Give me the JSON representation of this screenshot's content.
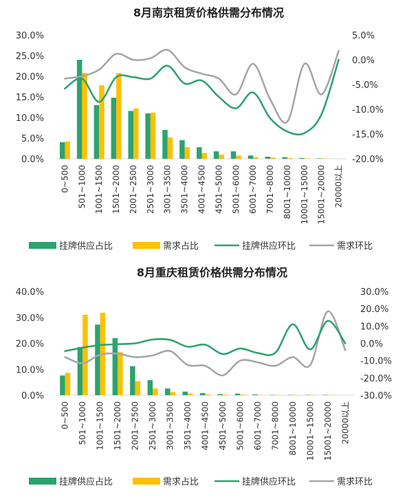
{
  "chart_data": [
    {
      "type": "bar",
      "title": "8月南京租赁价格供需分布情况",
      "categories": [
        "0~500",
        "501~1000",
        "1001~1500",
        "1501~2000",
        "2001~2500",
        "2501~3000",
        "3001~3500",
        "3501~4000",
        "4001~4500",
        "4501~5000",
        "5001~6000",
        "6001~7000",
        "7001~8000",
        "8001~10000",
        "10001~15000",
        "15001~20000",
        "20000以上"
      ],
      "left_axis": {
        "min": 0,
        "max": 30,
        "step": 5,
        "ticks": [
          "0.0%",
          "5.0%",
          "10.0%",
          "15.0%",
          "20.0%",
          "25.0%",
          "30.0%"
        ]
      },
      "right_axis": {
        "min": -20,
        "max": 5,
        "step": 5,
        "ticks": [
          "-20.0%",
          "-15.0%",
          "-10.0%",
          "-5.0%",
          "0.0%",
          "5.0%"
        ]
      },
      "series": [
        {
          "name": "挂牌供应占比",
          "kind": "bar",
          "axis": "left",
          "color": "#2ca36e",
          "values": [
            4.0,
            24.0,
            13.0,
            14.8,
            11.6,
            11.0,
            7.0,
            4.5,
            2.8,
            1.8,
            1.8,
            0.8,
            0.5,
            0.4,
            0.2,
            0.1,
            null
          ]
        },
        {
          "name": "需求占比",
          "kind": "bar",
          "axis": "left",
          "color": "#ffc000",
          "values": [
            4.2,
            20.8,
            17.8,
            20.8,
            12.2,
            11.2,
            5.2,
            2.8,
            1.4,
            1.0,
            0.8,
            0.4,
            0.3,
            0.2,
            0.1,
            0.1,
            null
          ]
        },
        {
          "name": "挂牌供应环比",
          "kind": "line",
          "axis": "right",
          "color": "#2ca36e",
          "values": [
            -5.8,
            -3.8,
            -8.5,
            -3.5,
            -3.5,
            -3.8,
            -1.2,
            -4.8,
            -4.2,
            -7.5,
            -9.8,
            -6.6,
            -11.8,
            -14.5,
            -14.8,
            -11.0,
            0.0
          ]
        },
        {
          "name": "需求环比",
          "kind": "line",
          "axis": "right",
          "color": "#a6a6a6",
          "values": [
            -3.8,
            -3.3,
            -2.0,
            1.2,
            0.0,
            0.3,
            2.0,
            -1.5,
            -2.8,
            -3.8,
            -7.0,
            -0.8,
            -8.0,
            -12.5,
            -0.8,
            -7.0,
            1.8
          ]
        }
      ]
    },
    {
      "type": "bar",
      "title": "8月重庆租赁价格供需分布情况",
      "categories": [
        "0~500",
        "501~1000",
        "1001~1500",
        "1501~2000",
        "2001~2500",
        "2501~3000",
        "3001~3500",
        "3501~4000",
        "4001~4500",
        "4501~5000",
        "5001~6000",
        "6001~7000",
        "7001~8000",
        "8001~10000",
        "10001~15000",
        "15001~20000",
        "20000以上"
      ],
      "left_axis": {
        "min": 0,
        "max": 40,
        "step": 10,
        "ticks": [
          "0.0%",
          "10.0%",
          "20.0%",
          "30.0%",
          "40.0%"
        ]
      },
      "right_axis": {
        "min": -30,
        "max": 30,
        "step": 10,
        "ticks": [
          "-30.0%",
          "-20.0%",
          "-10.0%",
          "0.0%",
          "10.0%",
          "20.0%",
          "30.0%"
        ]
      },
      "series": [
        {
          "name": "挂牌供应占比",
          "kind": "bar",
          "axis": "left",
          "color": "#2ca36e",
          "values": [
            7.6,
            18.6,
            27.2,
            22.0,
            11.2,
            5.8,
            2.6,
            1.4,
            0.8,
            0.4,
            0.6,
            0.3,
            0.1,
            0.1,
            0.1,
            0.1,
            null
          ]
        },
        {
          "name": "需求占比",
          "kind": "bar",
          "axis": "left",
          "color": "#ffc000",
          "values": [
            8.6,
            31.0,
            31.8,
            16.6,
            5.4,
            2.6,
            1.2,
            0.6,
            0.3,
            0.2,
            0.2,
            0.1,
            0.1,
            0.1,
            0.1,
            0.1,
            null
          ]
        },
        {
          "name": "挂牌供应环比",
          "kind": "line",
          "axis": "right",
          "color": "#2ca36e",
          "values": [
            -4.5,
            -2.5,
            -1.0,
            -0.5,
            0.0,
            2.2,
            2.0,
            -2.0,
            -0.8,
            -6.2,
            -3.0,
            -5.6,
            -5.5,
            11.0,
            -3.5,
            13.0,
            0.0
          ]
        },
        {
          "name": "需求环比",
          "kind": "line",
          "axis": "right",
          "color": "#a6a6a6",
          "values": [
            -8.0,
            -11.5,
            -6.5,
            -6.0,
            -8.0,
            -7.0,
            -4.5,
            -12.5,
            -13.0,
            -18.5,
            -10.0,
            -11.0,
            -13.0,
            -8.0,
            -12.5,
            18.5,
            -4.0
          ]
        }
      ]
    }
  ]
}
